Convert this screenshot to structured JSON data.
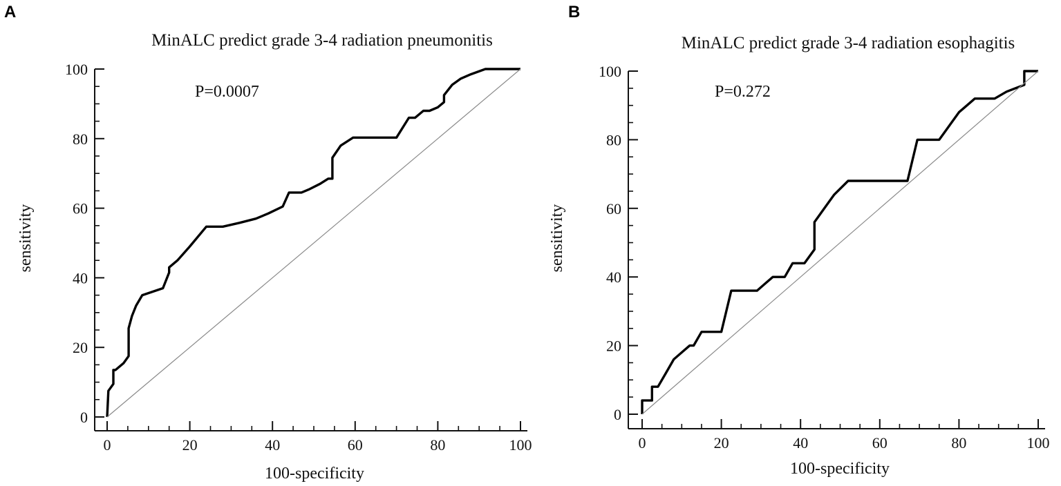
{
  "chart_data": [
    {
      "type": "line",
      "panel": "A",
      "title": "MinALC predict grade 3-4 radiation pneumonitis",
      "xlabel": "100-specificity",
      "ylabel": "sensitivity",
      "annotation": "P=0.0007",
      "xlim": [
        0,
        100
      ],
      "ylim": [
        0,
        100
      ],
      "xticks": [
        0,
        20,
        40,
        60,
        80,
        100
      ],
      "yticks": [
        0,
        20,
        40,
        60,
        80,
        100
      ],
      "grid": false,
      "series": [
        {
          "name": "ROC",
          "x": [
            0,
            0,
            0.3,
            1.5,
            1.5,
            2,
            4,
            5.2,
            5.2,
            6,
            7,
            8.5,
            13.5,
            15,
            15,
            17,
            20,
            24,
            28,
            32,
            36,
            39,
            42.5,
            44,
            47,
            49,
            51.5,
            53.5,
            54.5,
            54.5,
            56.5,
            59.5,
            62,
            66,
            70,
            73,
            74.5,
            76.5,
            78,
            80,
            81.5,
            81.5,
            83.5,
            85.5,
            88,
            91.5,
            96,
            100
          ],
          "y": [
            0,
            0,
            7.5,
            9.5,
            13.5,
            13.5,
            15.5,
            17.5,
            25.5,
            29,
            32,
            35,
            37,
            41.5,
            43,
            45,
            49,
            54.7,
            54.7,
            55.8,
            57,
            58.5,
            60.5,
            64.5,
            64.5,
            65.5,
            67,
            68.5,
            68.5,
            74.5,
            78,
            80.3,
            80.3,
            80.3,
            80.3,
            86,
            86,
            88,
            88,
            89,
            90.5,
            92.5,
            95.5,
            97.2,
            98.5,
            100,
            100,
            100
          ]
        },
        {
          "name": "Reference",
          "x": [
            0,
            100
          ],
          "y": [
            0,
            100
          ]
        }
      ]
    },
    {
      "type": "line",
      "panel": "B",
      "title": "MinALC predict grade 3-4 radiation esophagitis",
      "xlabel": "100-specificity",
      "ylabel": "sensitivity",
      "annotation": "P=0.272",
      "xlim": [
        0,
        100
      ],
      "ylim": [
        0,
        100
      ],
      "xticks": [
        0,
        20,
        40,
        60,
        80,
        100
      ],
      "yticks": [
        0,
        20,
        40,
        60,
        80,
        100
      ],
      "grid": false,
      "series": [
        {
          "name": "ROC",
          "x": [
            0,
            0,
            2.5,
            2.5,
            4,
            6,
            8,
            10,
            12,
            13,
            15,
            17,
            20,
            22.5,
            26,
            29,
            31,
            33,
            36,
            38,
            41,
            43.5,
            43.5,
            46,
            48.5,
            52,
            55,
            67,
            69.5,
            73,
            75,
            77.5,
            80,
            82,
            84,
            89,
            92,
            96.5,
            96.5,
            100
          ],
          "y": [
            0,
            4,
            4,
            8,
            8,
            12,
            16,
            18,
            20,
            20,
            24,
            24,
            24,
            36,
            36,
            36,
            38,
            40,
            40,
            44,
            44,
            48,
            56,
            60,
            64,
            68,
            68,
            68,
            80,
            80,
            80,
            84,
            88,
            90,
            92,
            92,
            94,
            96,
            100,
            100
          ]
        },
        {
          "name": "Reference",
          "x": [
            0,
            100
          ],
          "y": [
            0,
            100
          ]
        }
      ]
    }
  ]
}
